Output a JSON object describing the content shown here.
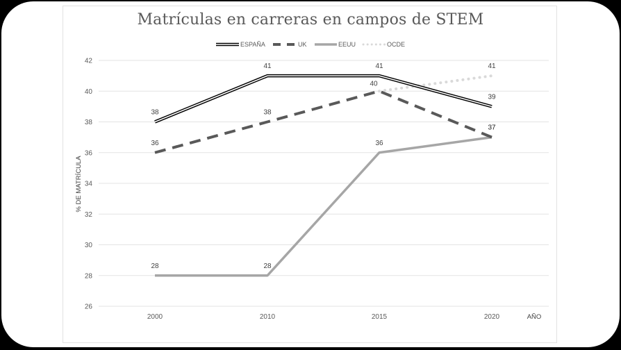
{
  "chart_data": {
    "type": "line",
    "title": "Matrículas en carreras en campos de STEM",
    "xlabel": "AÑO",
    "ylabel": "% DE MATRÍCULA",
    "categories": [
      "2000",
      "2010",
      "2015",
      "2020"
    ],
    "ylim": [
      26,
      42
    ],
    "yticks": [
      26,
      28,
      30,
      32,
      34,
      36,
      38,
      40,
      42
    ],
    "grid": true,
    "legend_position": "top",
    "series": [
      {
        "name": "ESPAÑA",
        "values": [
          38,
          41,
          41,
          39
        ],
        "style": "double",
        "color": "#000000"
      },
      {
        "name": "UK",
        "values": [
          36,
          38,
          40,
          37
        ],
        "style": "dashed",
        "color": "#595959"
      },
      {
        "name": "EEUU",
        "values": [
          28,
          28,
          36,
          37
        ],
        "style": "solid",
        "color": "#a6a6a6"
      },
      {
        "name": "OCDE",
        "values": [
          null,
          null,
          40,
          41
        ],
        "style": "dotted",
        "color": "#d9d9d9"
      }
    ]
  }
}
